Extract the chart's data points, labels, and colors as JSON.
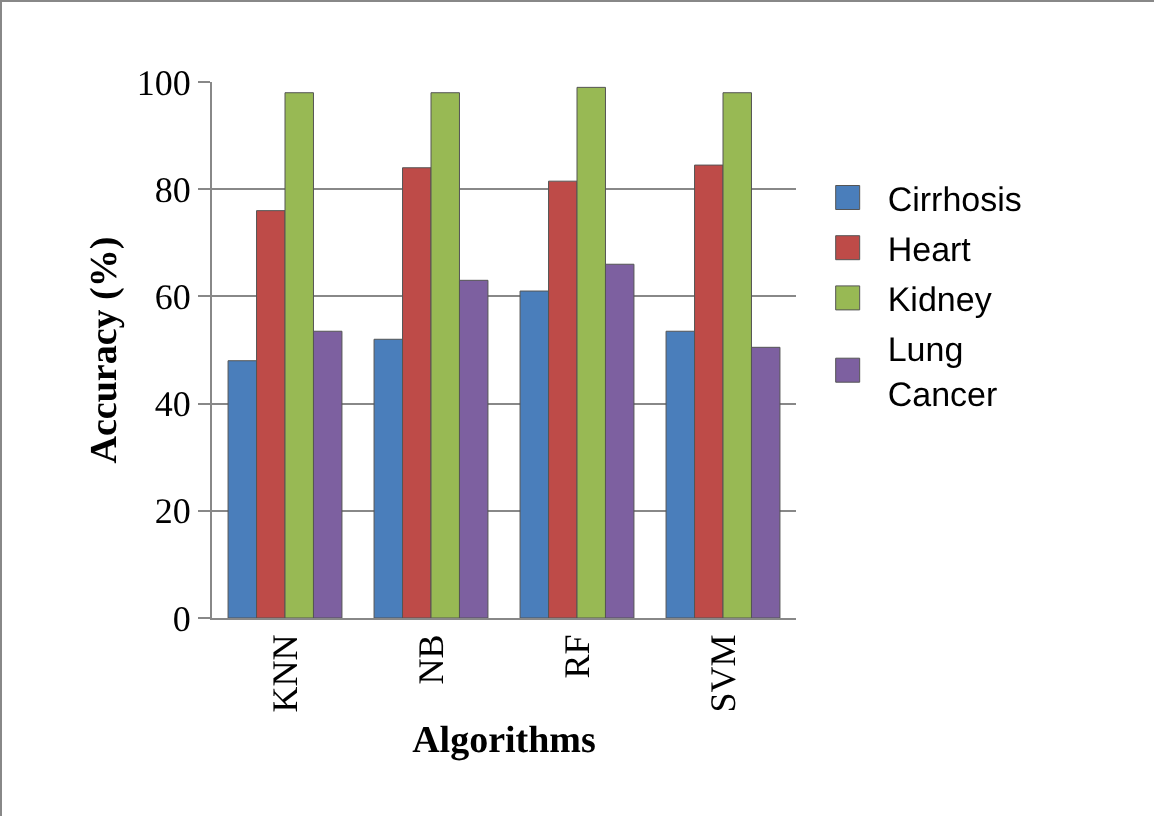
{
  "chart_data": {
    "type": "bar",
    "xlabel": "Algorithms",
    "ylabel": "Accuracy (%)",
    "categories": [
      "KNN",
      "NB",
      "RF",
      "SVM"
    ],
    "series": [
      {
        "name": "Cirrhosis",
        "color": "#4a7ebb",
        "values": [
          48,
          52,
          61,
          53.5
        ]
      },
      {
        "name": "Heart",
        "color": "#be4b48",
        "values": [
          76,
          84,
          81.5,
          84.5
        ]
      },
      {
        "name": "Kidney",
        "color": "#98b954",
        "values": [
          98,
          98,
          99,
          98
        ]
      },
      {
        "name": "Lung Cancer",
        "color": "#7d60a0",
        "values": [
          53.5,
          63,
          66,
          50.5
        ]
      }
    ],
    "ylim": [
      0,
      100
    ],
    "yticks": [
      0,
      20,
      40,
      60,
      80,
      100
    ],
    "grid": "y",
    "legend": "right"
  }
}
